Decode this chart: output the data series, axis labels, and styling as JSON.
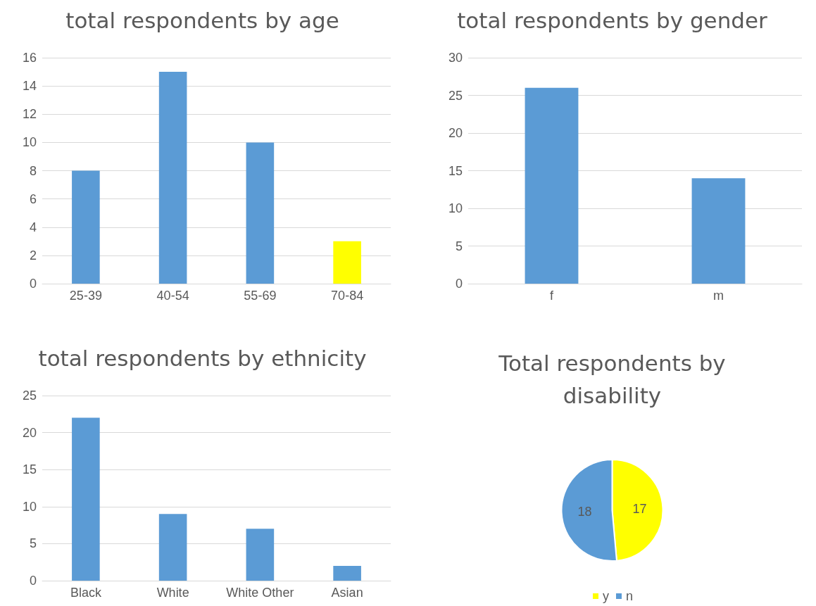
{
  "chart_data": [
    {
      "type": "bar",
      "title": "total respondents by age",
      "categories": [
        "25-39",
        "40-54",
        "55-69",
        "70-84"
      ],
      "values": [
        8,
        15,
        10,
        3
      ],
      "colors": [
        "#5b9bd5",
        "#5b9bd5",
        "#5b9bd5",
        "#ffff00"
      ],
      "ylim": [
        0,
        16
      ],
      "yticks": [
        0,
        2,
        4,
        6,
        8,
        10,
        12,
        14,
        16
      ],
      "grid": "y",
      "legend": false
    },
    {
      "type": "bar",
      "title": "total respondents by gender",
      "categories": [
        "f",
        "m"
      ],
      "values": [
        26,
        14
      ],
      "color": "#5b9bd5",
      "ylim": [
        0,
        30
      ],
      "yticks": [
        0,
        5,
        10,
        15,
        20,
        25,
        30
      ],
      "grid": "y",
      "legend": false
    },
    {
      "type": "bar",
      "title": "total respondents by ethnicity",
      "categories": [
        "Black",
        "White",
        "White Other",
        "Asian"
      ],
      "values": [
        22,
        9,
        7,
        2
      ],
      "color": "#5b9bd5",
      "ylim": [
        0,
        25
      ],
      "yticks": [
        0,
        5,
        10,
        15,
        20,
        25
      ],
      "grid": "y",
      "legend": false
    },
    {
      "type": "pie",
      "title": "Total respondents by disability",
      "categories": [
        "y",
        "n"
      ],
      "values": [
        17,
        18
      ],
      "colors": [
        "#ffff00",
        "#5b9bd5"
      ],
      "data_labels": true,
      "legend": "bottom"
    }
  ]
}
